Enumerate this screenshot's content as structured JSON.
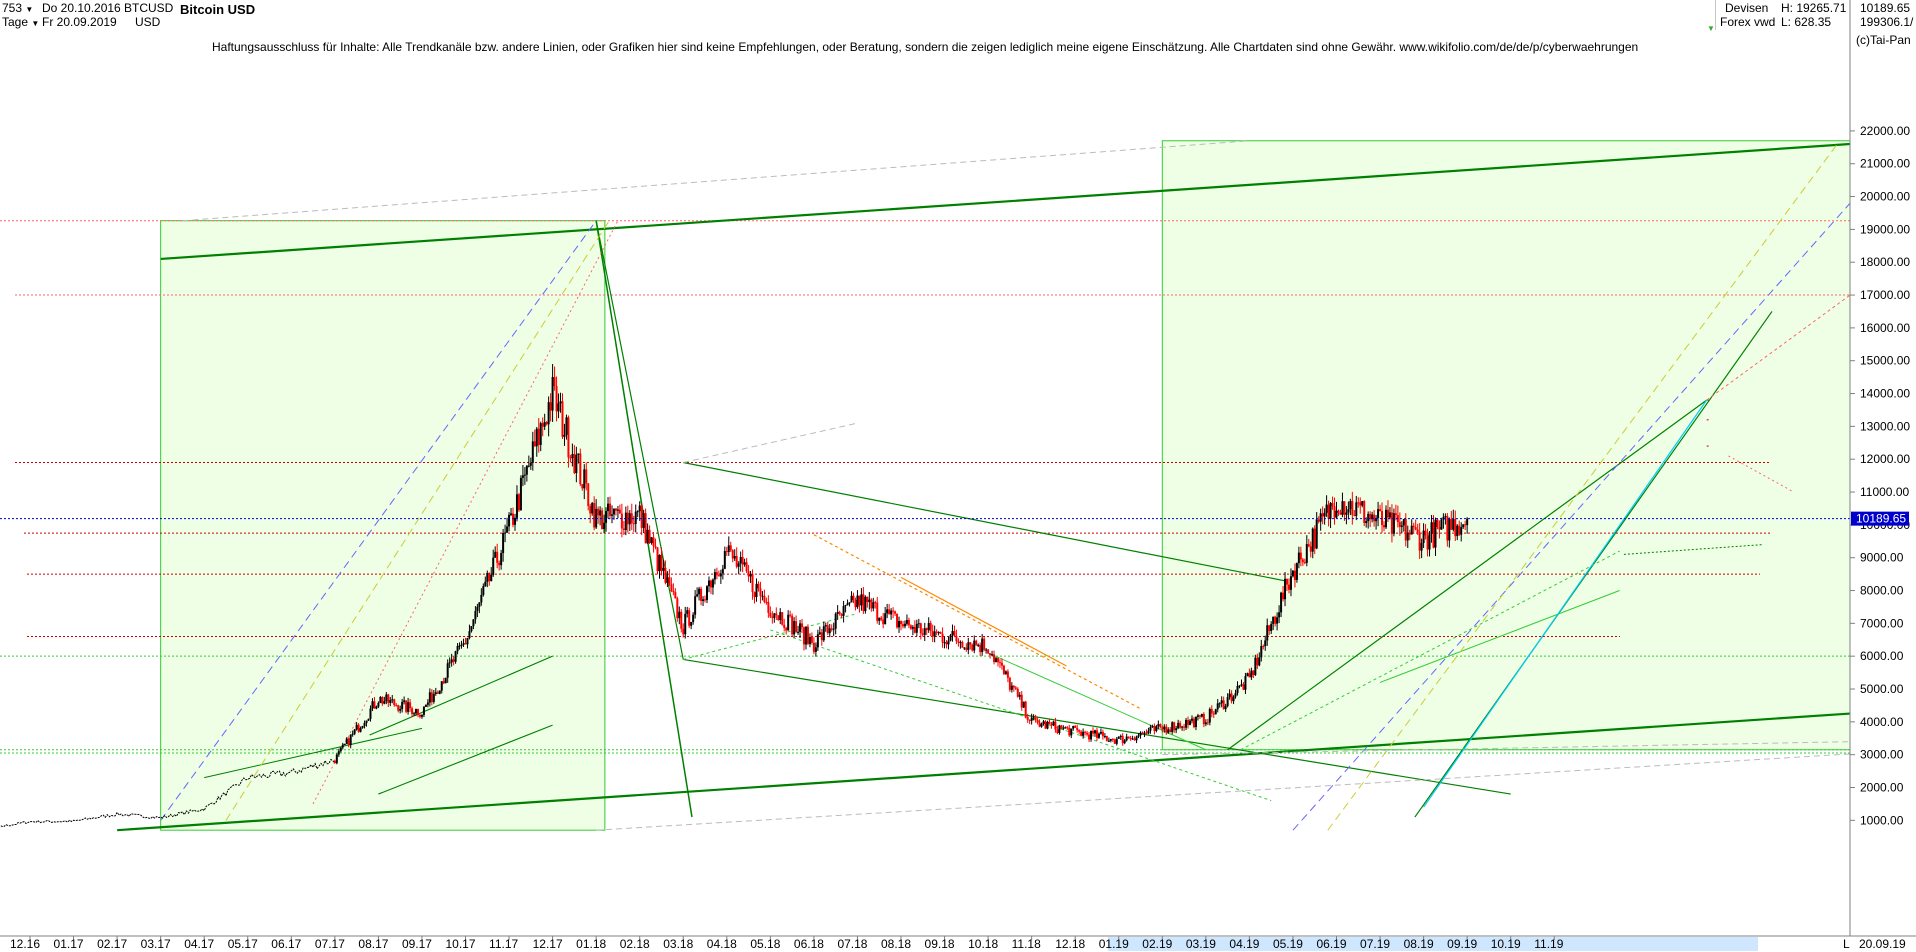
{
  "header": {
    "period": "753",
    "unit": "Tage",
    "date_from": "Do 20.10.2016",
    "date_to": "Fr 20.09.2019",
    "symbol": "BTCUSD",
    "currency": "USD",
    "title": "Bitcoin USD",
    "category": "Devisen",
    "source": "Forex vwd",
    "high_label": "H: 19265.71",
    "low_label": "L: 628.35",
    "last": "10189.65",
    "volume": "199306.1/",
    "copyright": "(c)Tai-Pan"
  },
  "disclaimer": "Haftungsausschluss für Inhalte: Alle Trendkanäle bzw. andere Linien, oder Grafiken hier sind keine Empfehlungen, oder Beratung, sondern die zeigen lediglich meine eigene Einschätzung. Alle Chartdaten sind ohne Gewähr.  www.wikifolio.com/de/de/p/cyberwaehrungen",
  "colors": {
    "up": "#000000",
    "down": "#ff0000",
    "trend_dark": "#008000",
    "trend_light": "#33cc33",
    "box_fill": "#eaffdf",
    "current_price_line": "#0000cc",
    "price_badge": "#0000cc"
  },
  "footer": {
    "end_date": "20.09.19",
    "scale_mode": "L"
  },
  "chart_data": {
    "type": "line",
    "title": "Bitcoin USD",
    "xlabel": "",
    "ylabel": "",
    "ylim": [
      600,
      22600
    ],
    "log_scale": false,
    "grid": false,
    "current_price": 10189.65,
    "y_ticks": [
      "1000.00",
      "2000.00",
      "3000.00",
      "4000.00",
      "5000.00",
      "6000.00",
      "7000.00",
      "8000.00",
      "9000.00",
      "10000.00",
      "11000.00",
      "12000.00",
      "13000.00",
      "14000.00",
      "15000.00",
      "16000.00",
      "17000.00",
      "18000.00",
      "19000.00",
      "20000.00",
      "21000.00",
      "22000.00"
    ],
    "x_ticks": [
      "12.16",
      "01.17",
      "02.17",
      "03.17",
      "04.17",
      "05.17",
      "06.17",
      "07.17",
      "08.17",
      "09.17",
      "10.17",
      "11.17",
      "12.17",
      "01.18",
      "02.18",
      "03.18",
      "04.18",
      "05.18",
      "06.18",
      "07.18",
      "08.18",
      "09.18",
      "10.18",
      "11.18",
      "12.18",
      "01.19",
      "02.19",
      "03.19",
      "04.19",
      "05.19",
      "06.19",
      "07.19",
      "08.19",
      "09.19",
      "10.19",
      "11.19"
    ],
    "series": [
      {
        "values_by_month": [
          "2016-10",
          "2016-11",
          "2016-12",
          "2017-01",
          "2017-02",
          "2017-03",
          "2017-04",
          "2017-05",
          "2017-06",
          "2017-07",
          "2017-08",
          "2017-09",
          "2017-10",
          "2017-11",
          "2017-12",
          "2018-01",
          "2018-02",
          "2018-03",
          "2018-04",
          "2018-05",
          "2018-06",
          "2018-07",
          "2018-08",
          "2018-09",
          "2018-10",
          "2018-11",
          "2018-12",
          "2019-01",
          "2019-02",
          "2019-03",
          "2019-04",
          "2019-05",
          "2019-06",
          "2019-07",
          "2019-08",
          "2019-09"
        ],
        "close": [
          700,
          740,
          960,
          970,
          1190,
          1080,
          1350,
          2300,
          2450,
          2850,
          4700,
          4300,
          6450,
          9900,
          14000,
          10200,
          10300,
          6900,
          9200,
          7500,
          6400,
          7700,
          7000,
          6600,
          6300,
          4000,
          3700,
          3450,
          3800,
          4100,
          5300,
          8600,
          10800,
          10100,
          9600,
          10189.65
        ]
      }
    ]
  }
}
